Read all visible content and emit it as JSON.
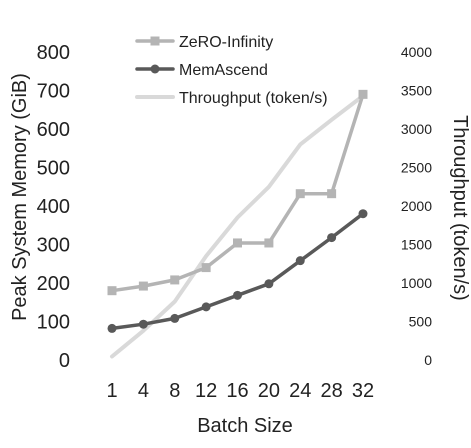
{
  "chart_data": {
    "type": "line",
    "categories": [
      "1",
      "4",
      "8",
      "12",
      "16",
      "20",
      "24",
      "28",
      "32"
    ],
    "series": [
      {
        "name": "ZeRO-Infinity",
        "axis": "left",
        "color": "#b4b4b4",
        "marker": "square",
        "values": [
          180,
          192,
          208,
          240,
          304,
          304,
          432,
          432,
          690
        ]
      },
      {
        "name": "MemAscend",
        "axis": "left",
        "color": "#595959",
        "marker": "circle",
        "values": [
          82,
          93,
          108,
          138,
          168,
          198,
          258,
          318,
          380
        ]
      },
      {
        "name": "Throughput (token/s)",
        "axis": "right",
        "color": "#d9d9d9",
        "marker": "none",
        "values": [
          45,
          380,
          760,
          1350,
          1850,
          2250,
          2800,
          3120,
          3430
        ]
      }
    ],
    "xlabel": "Batch Size",
    "ylabel": "Peak System Memory (GiB)",
    "y2label": "Throughput (token/s)",
    "ylim": [
      0,
      800
    ],
    "y2lim": [
      0,
      4000
    ],
    "yticks": [
      "0",
      "100",
      "200",
      "300",
      "400",
      "500",
      "600",
      "700",
      "800"
    ],
    "y2ticks": [
      "0",
      "500",
      "1000",
      "1500",
      "2000",
      "2500",
      "3000",
      "3500",
      "4000"
    ],
    "grid": false,
    "legend_position": "top-left"
  }
}
